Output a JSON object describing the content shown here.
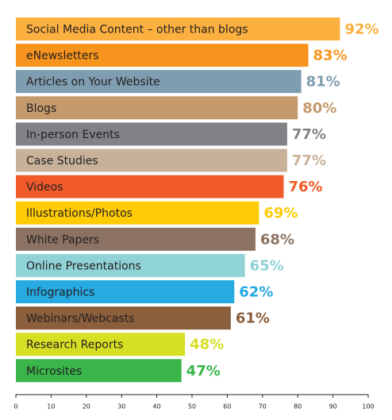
{
  "chart_data": {
    "type": "hbar",
    "categories": [
      "Social Media Content – other than blogs",
      "eNewsletters",
      "Articles on Your Website",
      "Blogs",
      "In-person Events",
      "Case Studies",
      "Videos",
      "Illustrations/Photos",
      "White Papers",
      "Online Presentations",
      "Infographics",
      "Webinars/Webcasts",
      "Research Reports",
      "Microsites"
    ],
    "values": [
      92,
      83,
      81,
      80,
      77,
      77,
      76,
      69,
      68,
      65,
      62,
      61,
      48,
      47
    ],
    "value_labels": [
      "92%",
      "83%",
      "81%",
      "80%",
      "77%",
      "77%",
      "76%",
      "69%",
      "68%",
      "65%",
      "62%",
      "61%",
      "48%",
      "47%"
    ],
    "colors": [
      "#fbb040",
      "#f7941d",
      "#7f9db0",
      "#c49a6c",
      "#808285",
      "#c7b299",
      "#f15a29",
      "#ffcb05",
      "#8b7262",
      "#8fd3d6",
      "#27a9e1",
      "#8b5e3c",
      "#d7df23",
      "#39b54a"
    ],
    "xlim": [
      0,
      100
    ],
    "xticks": [
      0,
      10,
      20,
      30,
      40,
      50,
      60,
      70,
      80,
      90,
      100
    ]
  }
}
